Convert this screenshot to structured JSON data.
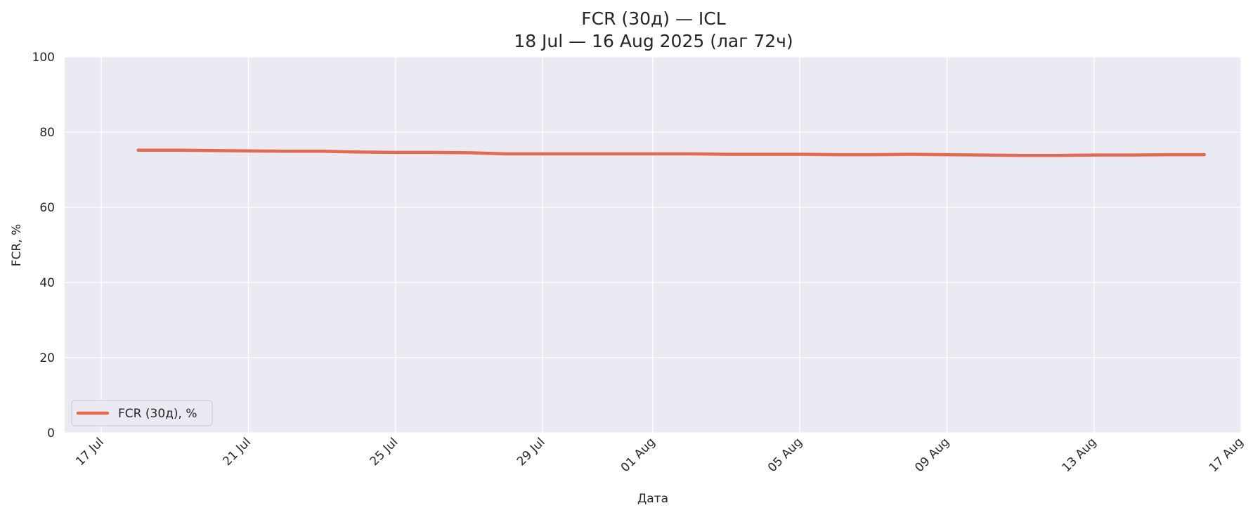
{
  "chart_data": {
    "type": "line",
    "title": "FCR (30д) — ICL",
    "subtitle": "18 Jul — 16 Aug 2025 (лаг 72ч)",
    "xlabel": "Дата",
    "ylabel": "FCR, %",
    "ylim": [
      0,
      100
    ],
    "xlim": [
      "2025-07-16",
      "2025-08-17"
    ],
    "grid": true,
    "legend_position": "lower-left",
    "x_ticks": [
      "2025-07-17",
      "2025-07-21",
      "2025-07-25",
      "2025-07-29",
      "2025-08-01",
      "2025-08-05",
      "2025-08-09",
      "2025-08-13",
      "2025-08-17"
    ],
    "x_tick_labels": [
      "17 Jul",
      "21 Jul",
      "25 Jul",
      "29 Jul",
      "01 Aug",
      "05 Aug",
      "09 Aug",
      "13 Aug",
      "17 Aug"
    ],
    "y_ticks": [
      0,
      20,
      40,
      60,
      80,
      100
    ],
    "y_tick_labels": [
      "0",
      "20",
      "40",
      "60",
      "80",
      "100"
    ],
    "x": [
      "2025-07-18",
      "2025-07-19",
      "2025-07-20",
      "2025-07-21",
      "2025-07-22",
      "2025-07-23",
      "2025-07-24",
      "2025-07-25",
      "2025-07-26",
      "2025-07-27",
      "2025-07-28",
      "2025-07-29",
      "2025-07-30",
      "2025-07-31",
      "2025-08-01",
      "2025-08-02",
      "2025-08-03",
      "2025-08-04",
      "2025-08-05",
      "2025-08-06",
      "2025-08-07",
      "2025-08-08",
      "2025-08-09",
      "2025-08-10",
      "2025-08-11",
      "2025-08-12",
      "2025-08-13",
      "2025-08-14",
      "2025-08-15",
      "2025-08-16"
    ],
    "series": [
      {
        "name": "FCR (30д), %",
        "color": "#e5694f",
        "values": [
          75.2,
          75.2,
          75.1,
          75.0,
          74.9,
          74.9,
          74.7,
          74.6,
          74.6,
          74.5,
          74.2,
          74.2,
          74.2,
          74.2,
          74.2,
          74.2,
          74.1,
          74.1,
          74.1,
          74.0,
          74.0,
          74.1,
          74.0,
          73.9,
          73.8,
          73.8,
          73.9,
          73.9,
          74.0,
          74.0
        ]
      }
    ]
  },
  "style": {
    "plot_background": "#eaeaf2",
    "grid_color": "#ffffff"
  }
}
